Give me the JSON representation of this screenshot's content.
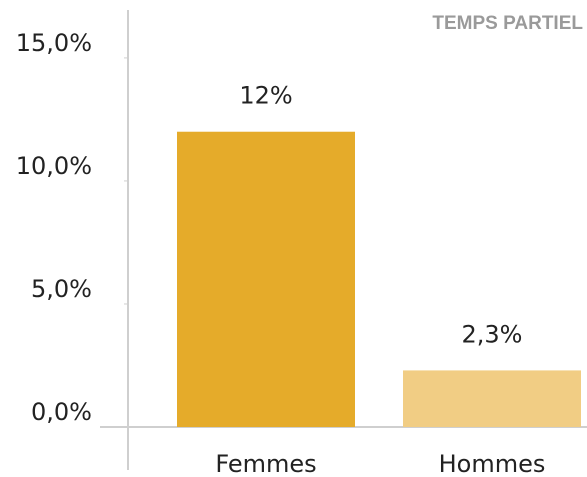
{
  "chart_data": {
    "type": "bar",
    "title": "TEMPS PARTIEL",
    "categories": [
      "Femmes",
      "Hommes"
    ],
    "values": [
      12,
      2.3
    ],
    "value_labels": [
      "12%",
      "2,3%"
    ],
    "colors": [
      "#e5ab2a",
      "#f1cd84"
    ],
    "ylim": [
      0,
      16.5
    ],
    "yticks": [
      {
        "value": 0,
        "label": "0,0%"
      },
      {
        "value": 5,
        "label": "5,0%"
      },
      {
        "value": 10,
        "label": "10,0%"
      },
      {
        "value": 15,
        "label": "15,0%"
      }
    ],
    "grid": false
  }
}
